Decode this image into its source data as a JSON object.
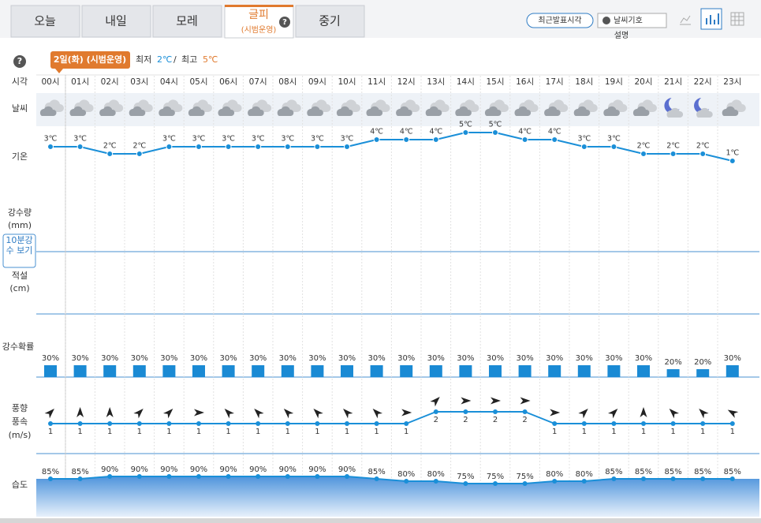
{
  "tabs": [
    {
      "label": "오늘"
    },
    {
      "label": "내일"
    },
    {
      "label": "모레"
    },
    {
      "label": "글피",
      "sublabel": "(시범운영)",
      "help": "?"
    },
    {
      "label": "중기"
    }
  ],
  "buttons": {
    "recent": "최근발표시각",
    "symbols": "날씨기호",
    "symbols_sub": "설명"
  },
  "help": "?",
  "date_badge": "2일(화) (시범운영)",
  "min_label": "최저",
  "min_value": "2℃",
  "separator": "/",
  "max_label": "최고",
  "max_value": "5℃",
  "row_labels": {
    "time": "시각",
    "weather": "날씨",
    "temperature": "기온",
    "precip": "강수량",
    "precip_unit": "(mm)",
    "ten_min": "10분강수 보기",
    "snow": "적설",
    "snow_unit": "(cm)",
    "probability": "강수확률",
    "wind_dir": "풍향",
    "wind_speed": "풍속",
    "wind_unit": "(m/s)",
    "humidity": "습도"
  },
  "hours": [
    "00시",
    "01시",
    "02시",
    "03시",
    "04시",
    "05시",
    "06시",
    "07시",
    "08시",
    "09시",
    "10시",
    "11시",
    "12시",
    "13시",
    "14시",
    "15시",
    "16시",
    "17시",
    "18시",
    "19시",
    "20시",
    "21시",
    "22시",
    "23시"
  ],
  "temperature": {
    "color": "#1a8fd8",
    "values": [
      3,
      3,
      2,
      2,
      3,
      3,
      3,
      3,
      3,
      3,
      3,
      4,
      4,
      4,
      5,
      5,
      4,
      4,
      3,
      3,
      2,
      2,
      2,
      1
    ],
    "value_labels": [
      "3℃",
      "3℃",
      "2℃",
      "2℃",
      "3℃",
      "3℃",
      "3℃",
      "3℃",
      "3℃",
      "3℃",
      "3℃",
      "4℃",
      "4℃",
      "4℃",
      "5℃",
      "5℃",
      "4℃",
      "4℃",
      "3℃",
      "3℃",
      "2℃",
      "2℃",
      "2℃",
      "1℃"
    ]
  },
  "precip_probability": {
    "color": "#1a8ad4",
    "values": [
      30,
      30,
      30,
      30,
      30,
      30,
      30,
      30,
      30,
      30,
      30,
      30,
      30,
      30,
      30,
      30,
      30,
      30,
      30,
      30,
      30,
      20,
      20,
      30
    ],
    "value_labels": [
      "30%",
      "30%",
      "30%",
      "30%",
      "30%",
      "30%",
      "30%",
      "30%",
      "30%",
      "30%",
      "30%",
      "30%",
      "30%",
      "30%",
      "30%",
      "30%",
      "30%",
      "30%",
      "30%",
      "30%",
      "30%",
      "20%",
      "20%",
      "30%"
    ]
  },
  "wind": {
    "color": "#1a8fd8",
    "direction": [
      45,
      0,
      0,
      45,
      45,
      90,
      315,
      315,
      315,
      315,
      315,
      315,
      90,
      45,
      90,
      90,
      90,
      90,
      45,
      45,
      0,
      315,
      315,
      300
    ],
    "speed": [
      1,
      1,
      1,
      1,
      1,
      1,
      1,
      1,
      1,
      1,
      1,
      1,
      1,
      2,
      2,
      2,
      2,
      1,
      1,
      1,
      1,
      1,
      1,
      1
    ]
  },
  "humidity": {
    "color": "#1a8fd8",
    "values": [
      85,
      85,
      90,
      90,
      90,
      90,
      90,
      90,
      90,
      90,
      90,
      85,
      80,
      80,
      75,
      75,
      75,
      80,
      80,
      85,
      85,
      85,
      85,
      85
    ],
    "value_labels": [
      "85%",
      "85%",
      "90%",
      "90%",
      "90%",
      "90%",
      "90%",
      "90%",
      "90%",
      "90%",
      "90%",
      "85%",
      "80%",
      "80%",
      "75%",
      "75%",
      "75%",
      "80%",
      "80%",
      "85%",
      "85%",
      "85%",
      "85%",
      "85%"
    ]
  }
}
